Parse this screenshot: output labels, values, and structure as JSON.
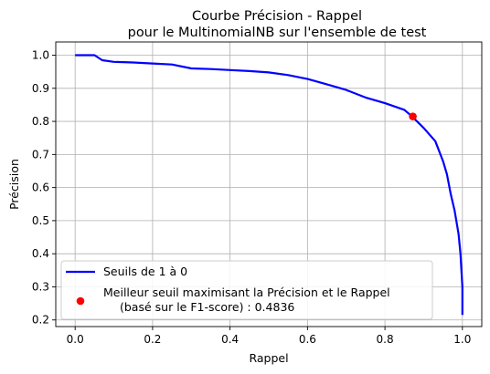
{
  "chart_data": {
    "type": "line",
    "title_lines": [
      "Courbe Précision - Rappel",
      "pour le MultinomialNB sur l'ensemble de test"
    ],
    "xlabel": "Rappel",
    "ylabel": "Précision",
    "xlim": [
      -0.05,
      1.05
    ],
    "ylim": [
      0.18,
      1.04
    ],
    "xticks": [
      0.0,
      0.2,
      0.4,
      0.6,
      0.8,
      1.0
    ],
    "xtick_labels": [
      "0.0",
      "0.2",
      "0.4",
      "0.6",
      "0.8",
      "1.0"
    ],
    "yticks": [
      0.2,
      0.3,
      0.4,
      0.5,
      0.6,
      0.7,
      0.8,
      0.9,
      1.0
    ],
    "ytick_labels": [
      "0.2",
      "0.3",
      "0.4",
      "0.5",
      "0.6",
      "0.7",
      "0.8",
      "0.9",
      "1.0"
    ],
    "grid": true,
    "legend_position": "lower-left",
    "series": [
      {
        "name": "Seuils de 1 à 0",
        "color": "#0000ff",
        "x": [
          0.0,
          0.05,
          0.07,
          0.1,
          0.15,
          0.2,
          0.25,
          0.3,
          0.35,
          0.4,
          0.45,
          0.5,
          0.55,
          0.6,
          0.65,
          0.7,
          0.75,
          0.8,
          0.85,
          0.87,
          0.9,
          0.93,
          0.95,
          0.96,
          0.97,
          0.98,
          0.99,
          0.995,
          1.0,
          1.0
        ],
        "y": [
          1.0,
          1.0,
          0.985,
          0.98,
          0.978,
          0.975,
          0.972,
          0.96,
          0.958,
          0.955,
          0.952,
          0.948,
          0.94,
          0.928,
          0.912,
          0.895,
          0.872,
          0.855,
          0.835,
          0.815,
          0.78,
          0.74,
          0.68,
          0.64,
          0.58,
          0.53,
          0.46,
          0.4,
          0.3,
          0.215
        ]
      }
    ],
    "marker": {
      "name": "Meilleur seuil maximisant la Précision et le Rappel",
      "name_line2": "(basé sur le F1-score) : 0.4836",
      "color": "#ff0000",
      "x": 0.872,
      "y": 0.815
    }
  }
}
